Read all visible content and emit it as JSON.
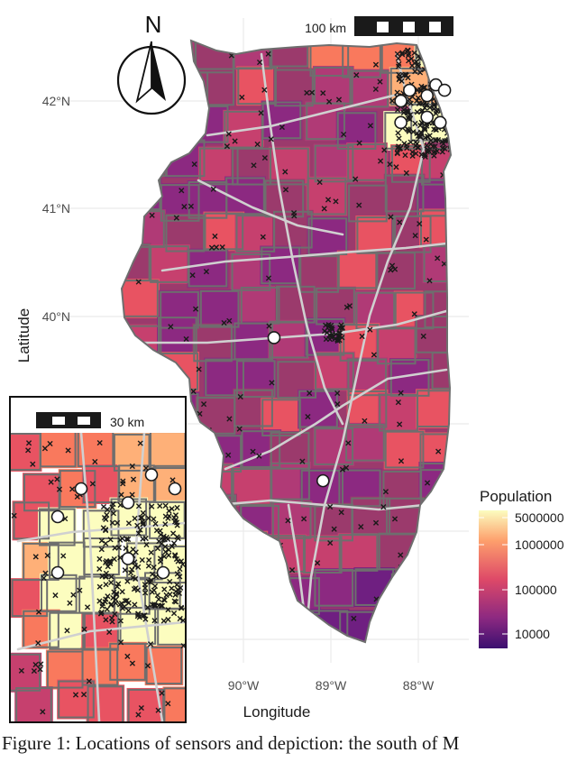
{
  "chart_data": {
    "type": "map",
    "region": "Illinois",
    "xlabel": "Longitude",
    "ylabel": "Latitude",
    "x_ticks": [
      "90°W",
      "89°W",
      "88°W"
    ],
    "y_ticks": [
      "42°N",
      "41°N",
      "40°N"
    ],
    "scale_bar_main": "100 km",
    "scale_bar_inset": "30 km",
    "north_label": "N",
    "legend": {
      "title": "Population",
      "scale": "log",
      "ticks": [
        "5000000",
        "1000000",
        "100000",
        "10000"
      ],
      "colors": [
        "#fcfdbf",
        "#fd9f6c",
        "#de4968",
        "#8c2981",
        "#3b0f70"
      ]
    },
    "colors": {
      "county_border": "#6e6e6e",
      "highway": "#d0d0d0",
      "marker": "#1a1a1a",
      "marker_circle": "#ffffff",
      "grid": "#ebebeb"
    },
    "points_circle": [
      {
        "lon": -89.65,
        "lat": 39.8
      },
      {
        "lon": -89.09,
        "lat": 38.47
      },
      {
        "lon": -88.2,
        "lat": 42.0
      },
      {
        "lon": -88.1,
        "lat": 42.1
      },
      {
        "lon": -87.9,
        "lat": 42.05
      },
      {
        "lon": -87.8,
        "lat": 42.15
      },
      {
        "lon": -87.7,
        "lat": 42.1
      },
      {
        "lon": -88.2,
        "lat": 41.8
      },
      {
        "lon": -87.9,
        "lat": 41.85
      },
      {
        "lon": -87.75,
        "lat": 41.8
      }
    ]
  },
  "caption": "Figure 1: Locations of sensors and depiction: the south of M"
}
